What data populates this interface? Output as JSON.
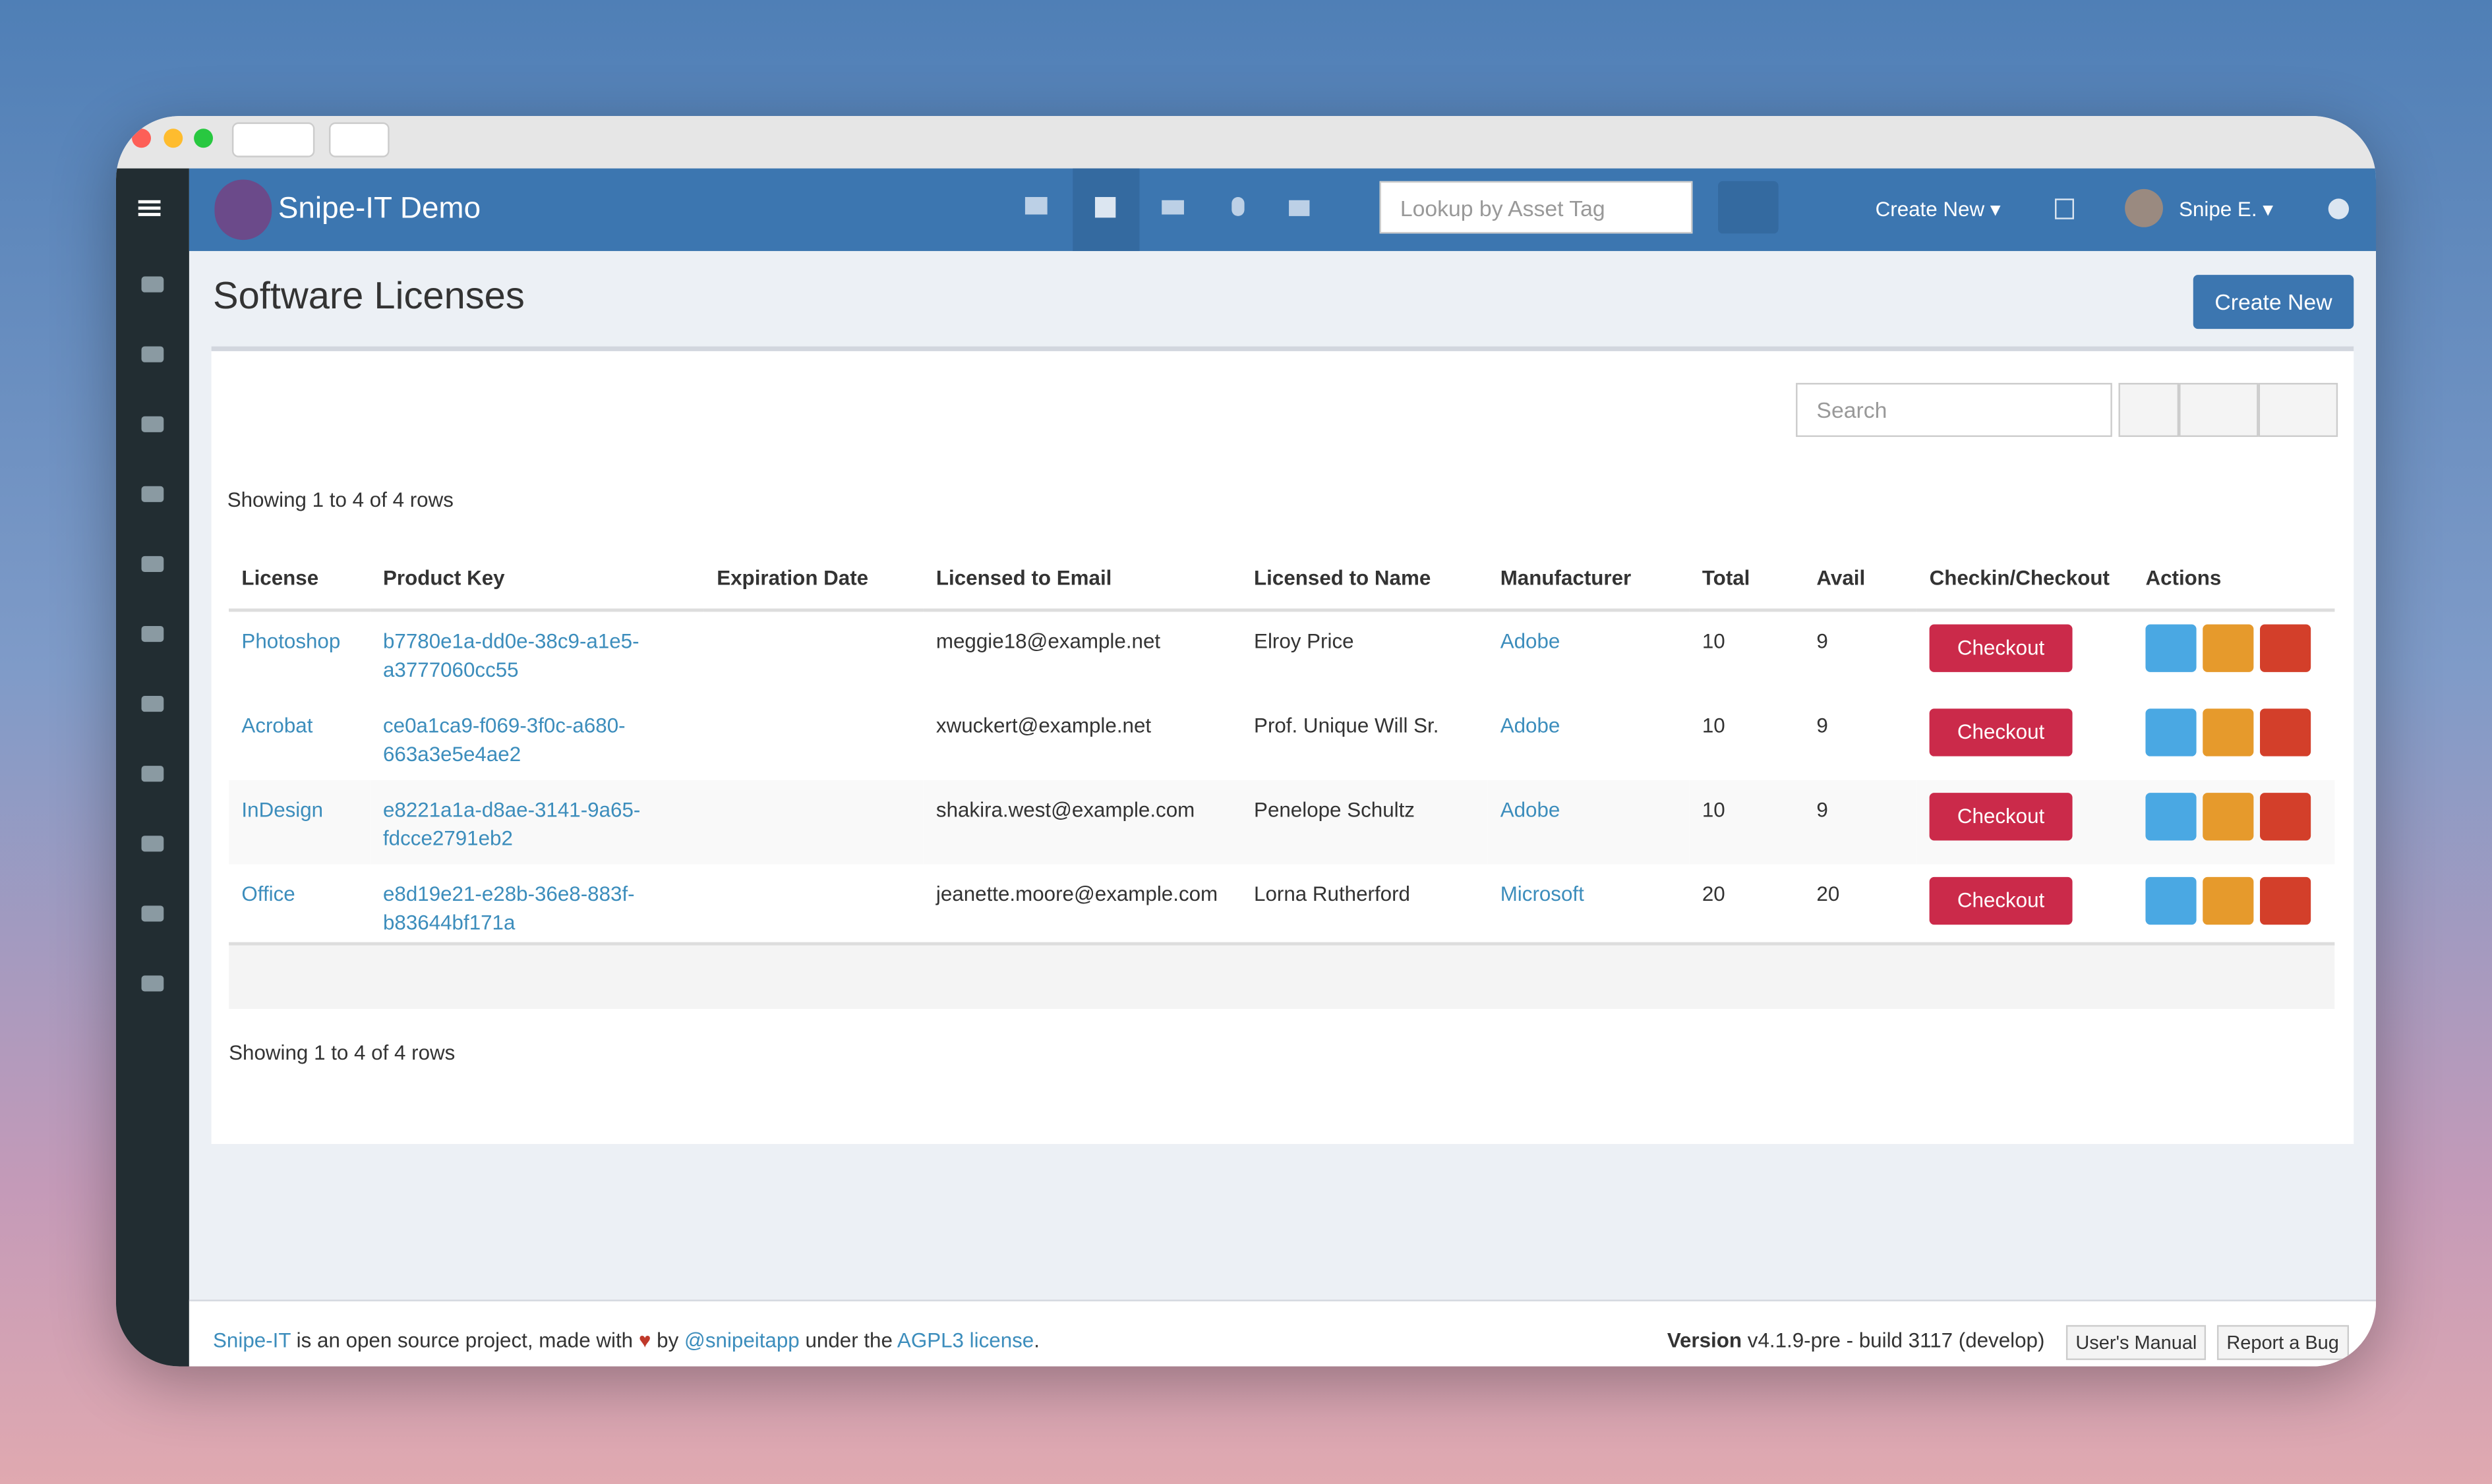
{
  "navbar": {
    "brand": "Snipe-IT Demo",
    "lookup_placeholder": "Lookup by Asset Tag",
    "create_new": "Create New",
    "user": "Snipe E."
  },
  "page": {
    "title": "Software Licenses",
    "create_button": "Create New"
  },
  "table": {
    "search_placeholder": "Search",
    "showing_top": "Showing 1 to 4 of 4 rows",
    "showing_bottom": "Showing 1 to 4 of 4 rows",
    "checkout_label": "Checkout",
    "columns": [
      "License",
      "Product Key",
      "Expiration Date",
      "Licensed to Email",
      "Licensed to Name",
      "Manufacturer",
      "Total",
      "Avail",
      "Checkin/Checkout",
      "Actions"
    ],
    "rows": [
      {
        "license": "Photoshop",
        "product_key": "b7780e1a-dd0e-38c9-a1e5-a3777060cc55",
        "email": "meggie18@example.net",
        "name": "Elroy Price",
        "manufacturer": "Adobe",
        "total": 10,
        "avail": 9
      },
      {
        "license": "Acrobat",
        "product_key": "ce0a1ca9-f069-3f0c-a680-663a3e5e4ae2",
        "email": "xwuckert@example.net",
        "name": "Prof. Unique Will Sr.",
        "manufacturer": "Adobe",
        "total": 10,
        "avail": 9
      },
      {
        "license": "InDesign",
        "product_key": "e8221a1a-d8ae-3141-9a65-fdcce2791eb2",
        "email": "shakira.west@example.com",
        "name": "Penelope Schultz",
        "manufacturer": "Adobe",
        "total": 10,
        "avail": 9
      },
      {
        "license": "Office",
        "product_key": "e8d19e21-e28b-36e8-883f-b83644bf171a",
        "email": "jeanette.moore@example.com",
        "name": "Lorna Rutherford",
        "manufacturer": "Microsoft",
        "total": 20,
        "avail": 20
      }
    ]
  },
  "footer": {
    "project": "Snipe-IT",
    "text1": "is an open source project, made with",
    "by": "by",
    "handle": "@snipeitapp",
    "under": "under the",
    "license": "AGPL3 license",
    "version_label": "Version",
    "version": "v4.1.9-pre - build 3117 (develop)",
    "manual": "User's Manual",
    "bug": "Report a Bug"
  }
}
